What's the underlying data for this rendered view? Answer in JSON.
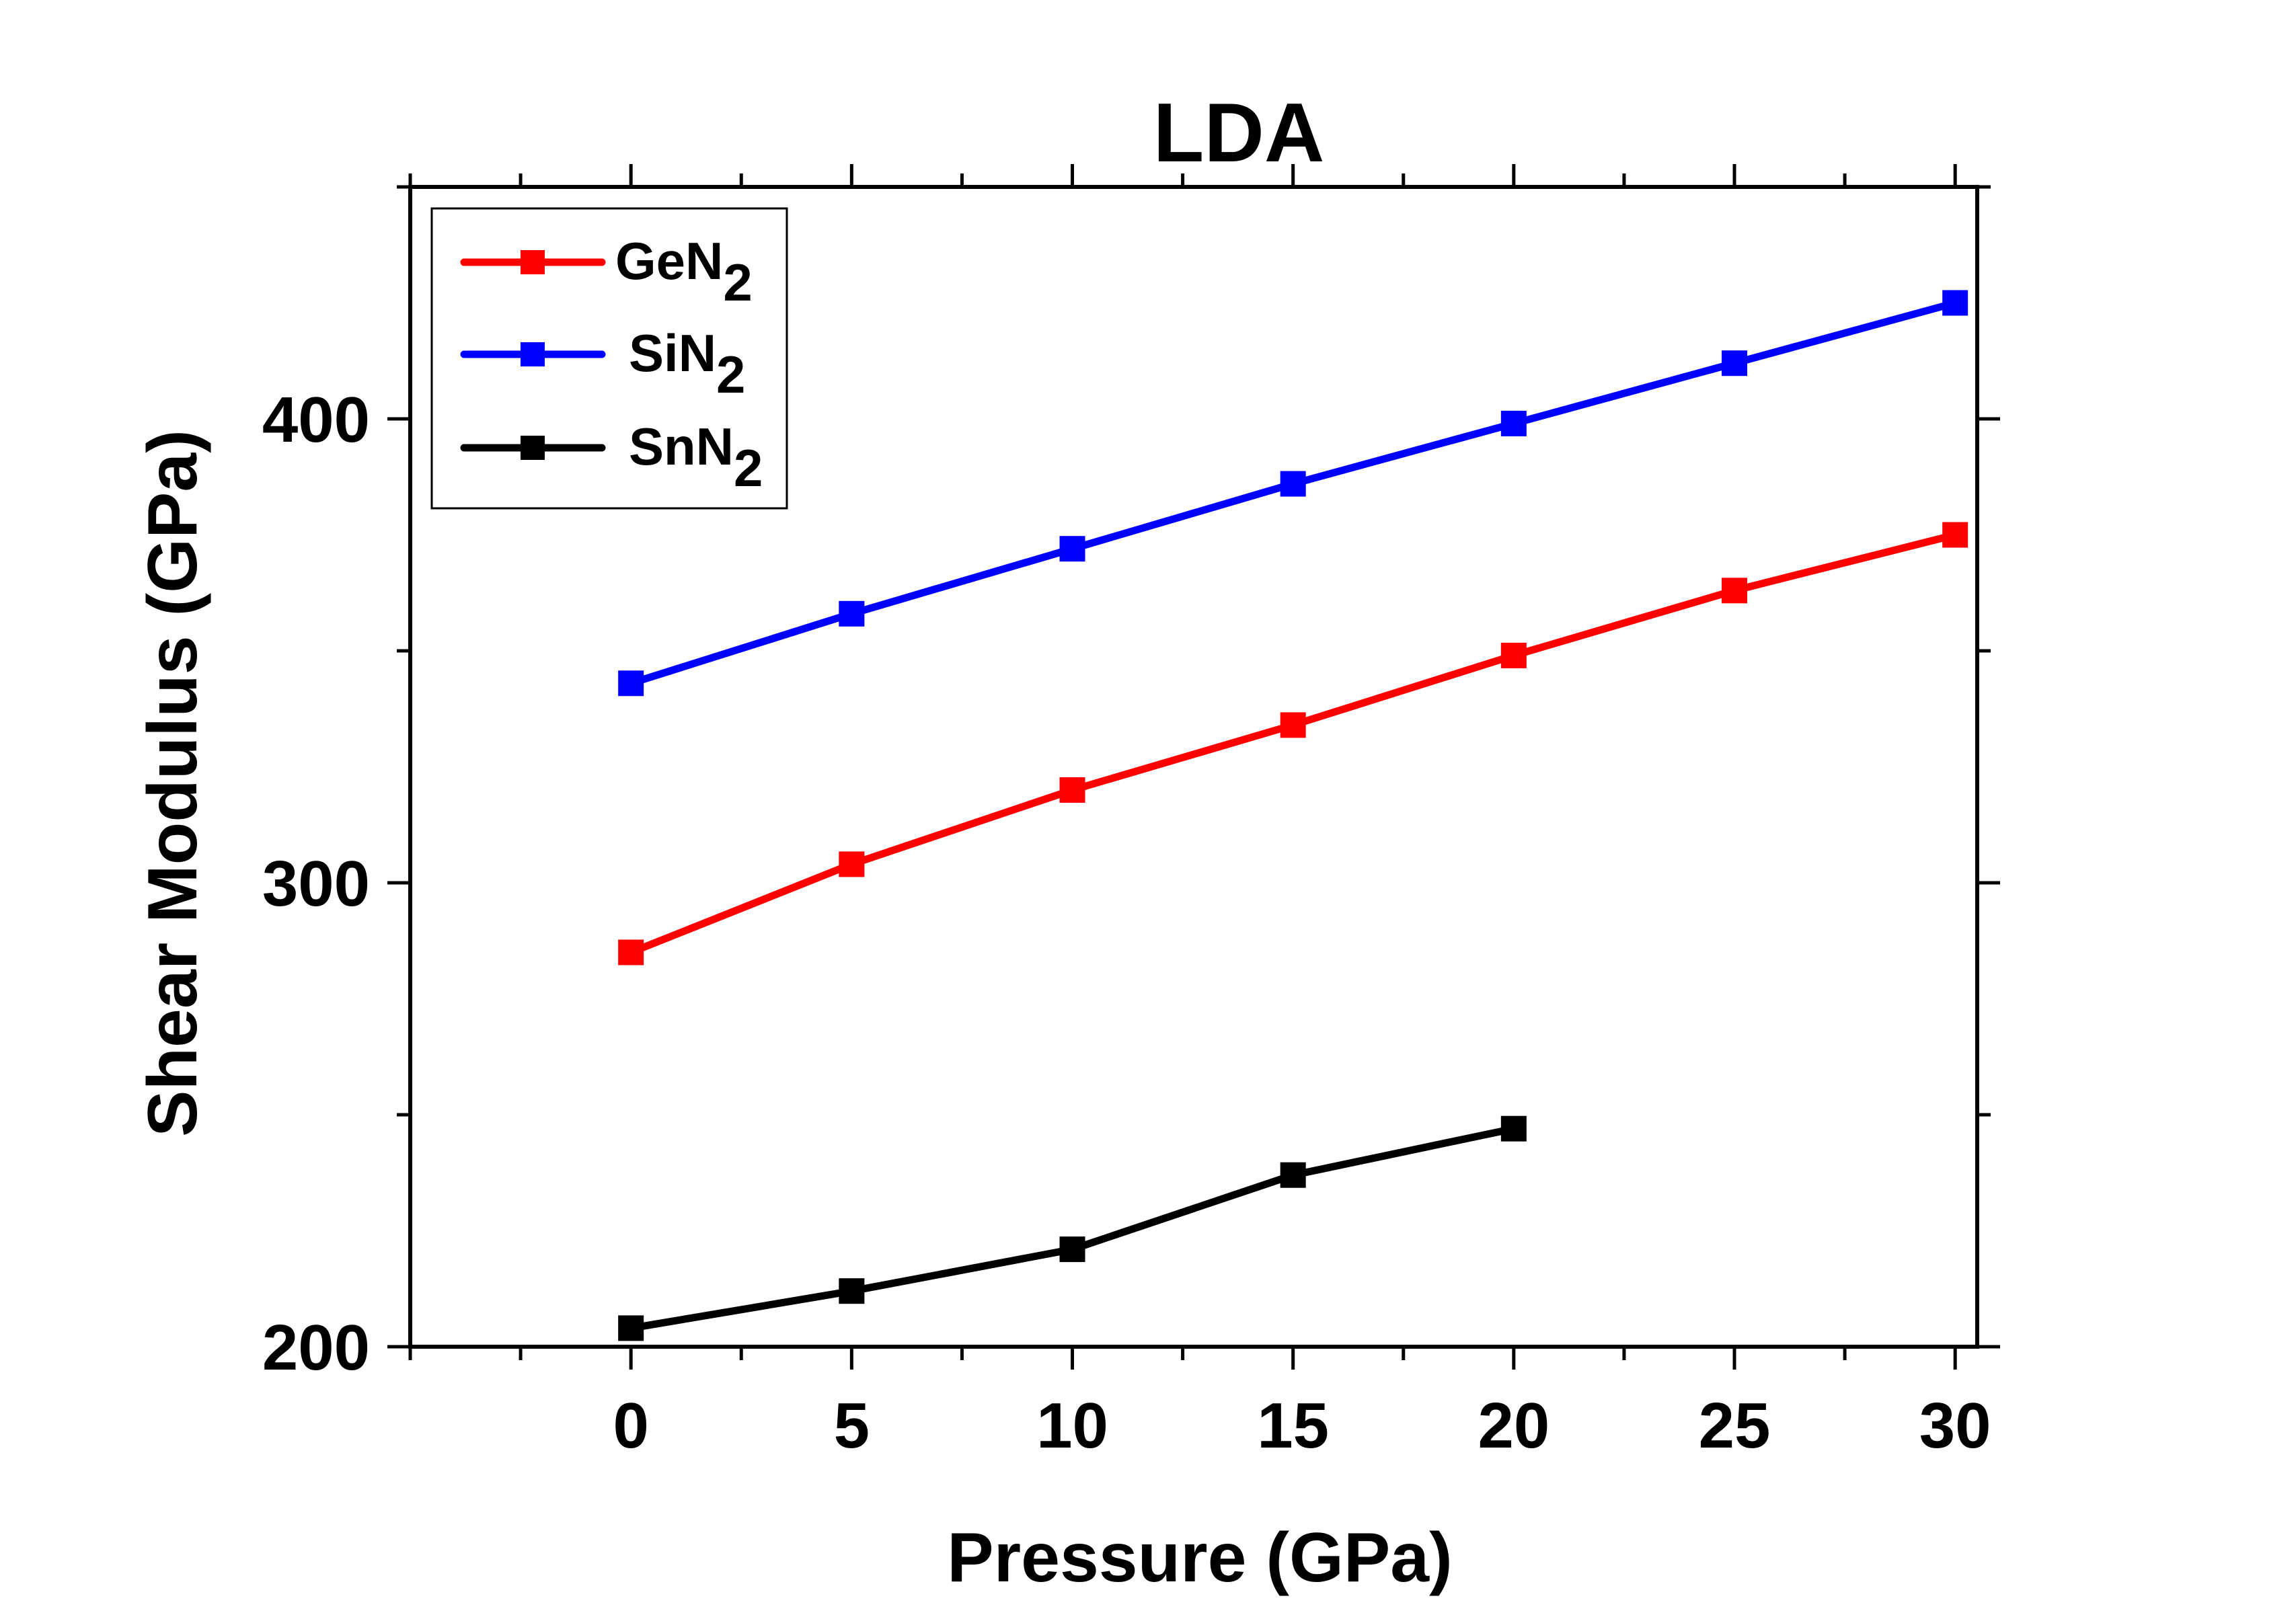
{
  "chart_data": {
    "type": "line",
    "title": "LDA",
    "xlabel": "Pressure (GPa)",
    "ylabel": "Shear Modulus (GPa)",
    "xlim": [
      -5,
      30.5
    ],
    "ylim": [
      200,
      450
    ],
    "x_ticks": [
      0,
      5,
      10,
      15,
      20,
      25,
      30
    ],
    "x_tick_labels": [
      "0",
      "5",
      "10",
      "15",
      "20",
      "25",
      "30"
    ],
    "y_ticks": [
      200,
      300,
      400
    ],
    "y_tick_labels": [
      "200",
      "300",
      "400"
    ],
    "legend_position": "top-left",
    "series": [
      {
        "name": "GeN",
        "name_subscript": "2",
        "color": "#ff0000",
        "x": [
          0,
          5,
          10,
          15,
          20,
          25,
          30
        ],
        "values": [
          285,
          304,
          320,
          334,
          349,
          363,
          375
        ]
      },
      {
        "name": "SiN",
        "name_subscript": "2",
        "color": "#0000ff",
        "x": [
          0,
          5,
          10,
          15,
          20,
          25,
          30
        ],
        "values": [
          343,
          358,
          372,
          386,
          399,
          412,
          425
        ]
      },
      {
        "name": "SnN",
        "name_subscript": "2",
        "color": "#000000",
        "x": [
          0,
          5,
          10,
          15,
          20
        ],
        "values": [
          204,
          212,
          221,
          237,
          247
        ]
      }
    ]
  }
}
